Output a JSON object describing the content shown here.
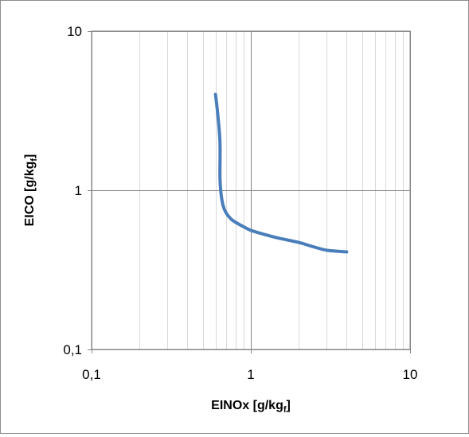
{
  "chart_data": {
    "type": "line",
    "xlabel": "EINOx [g/kg",
    "xlabel_sub": "f",
    "xlabel_end": "]",
    "ylabel": "EICO [g/kg",
    "ylabel_sub": "f",
    "ylabel_end": "]",
    "x_scale": "log",
    "y_scale": "log",
    "xlim": [
      0.1,
      10
    ],
    "ylim": [
      0.1,
      10
    ],
    "x_ticks": [
      "0,1",
      "1",
      "10"
    ],
    "y_ticks": [
      "0,1",
      "1",
      "10"
    ],
    "grid": true,
    "series_color": "#4a7ebb",
    "series": [
      {
        "x": [
          0.6,
          0.62,
          0.64,
          0.64,
          0.65,
          0.67,
          0.7,
          0.75,
          0.8,
          0.9,
          1.0,
          1.2,
          1.5,
          2.0,
          2.5,
          3.0,
          4.0
        ],
        "y": [
          4.0,
          3.0,
          2.0,
          1.2,
          0.95,
          0.8,
          0.72,
          0.66,
          0.63,
          0.59,
          0.56,
          0.53,
          0.5,
          0.47,
          0.44,
          0.42,
          0.41
        ]
      }
    ]
  }
}
